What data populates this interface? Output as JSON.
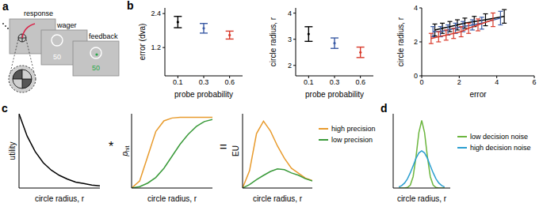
{
  "diagram": {
    "label": "a",
    "screens": [
      "response",
      "wager",
      "feedback"
    ],
    "wager_value": "50",
    "feedback_value": "50"
  },
  "chart_data": [
    {
      "type": "errorbar",
      "annotations": [
        "b"
      ],
      "xlabel": "probe probability",
      "ylabel": "error (dva)",
      "categories": [
        "0.1",
        "0.3",
        "0.6"
      ],
      "values": [
        2.1,
        1.88,
        1.64
      ],
      "error": [
        0.2,
        0.17,
        0.14
      ],
      "colors": [
        "#000000",
        "#3b5ba5",
        "#d93a2b"
      ],
      "ylim": [
        0.2,
        2.6
      ],
      "yticks": [
        1.2,
        2.4
      ]
    },
    {
      "type": "errorbar",
      "xlabel": "probe probability",
      "ylabel": "circle radius, r",
      "categories": [
        "0.1",
        "0.3",
        "0.6"
      ],
      "values": [
        3.2,
        2.85,
        2.5
      ],
      "error": [
        0.28,
        0.2,
        0.2
      ],
      "colors": [
        "#000000",
        "#3b5ba5",
        "#d93a2b"
      ],
      "ylim": [
        1.6,
        4.2
      ],
      "yticks": [
        2,
        3,
        4
      ]
    },
    {
      "type": "line",
      "xlabel": "error",
      "ylabel": "circle radius, r",
      "xlim": [
        0,
        6
      ],
      "xticks": [
        0,
        2,
        4,
        6
      ],
      "ylim": [
        0,
        4
      ],
      "yticks": [
        0,
        2,
        4
      ],
      "series": [
        {
          "color": "#000000",
          "x": [
            0.7,
            1.1,
            1.5,
            1.9,
            2.3,
            2.8,
            3.4,
            4.4
          ],
          "values": [
            2.7,
            2.8,
            2.9,
            3.0,
            3.1,
            3.2,
            3.3,
            3.5
          ],
          "error": [
            0.35,
            0.3,
            0.3,
            0.3,
            0.3,
            0.3,
            0.35,
            0.4
          ]
        },
        {
          "color": "#3b5ba5",
          "x": [
            0.6,
            1.0,
            1.4,
            1.8,
            2.2,
            2.7,
            3.2,
            4.2
          ],
          "values": [
            2.6,
            2.6,
            2.7,
            2.8,
            2.9,
            3.0,
            3.1,
            3.4
          ],
          "error": [
            0.3,
            0.3,
            0.3,
            0.3,
            0.3,
            0.3,
            0.35,
            0.4
          ]
        },
        {
          "color": "#d93a2b",
          "x": [
            0.5,
            0.9,
            1.3,
            1.7,
            2.1,
            2.5,
            3.0,
            3.8
          ],
          "values": [
            2.2,
            2.3,
            2.4,
            2.5,
            2.6,
            2.8,
            3.0,
            3.3
          ],
          "error": [
            0.3,
            0.3,
            0.3,
            0.3,
            0.3,
            0.3,
            0.35,
            0.4
          ]
        }
      ]
    },
    {
      "type": "line",
      "annotations": [
        "c"
      ],
      "xlabel": "circle radius, r",
      "ylabel": "utility",
      "tick_labels": false,
      "xlim": [
        0,
        10
      ],
      "ylim": [
        0,
        1
      ],
      "series": [
        {
          "color": "#000000",
          "x": [
            0,
            1,
            2,
            3,
            4,
            5,
            6,
            7,
            8,
            9,
            10
          ],
          "values": [
            1,
            0.7,
            0.49,
            0.34,
            0.24,
            0.17,
            0.12,
            0.08,
            0.06,
            0.04,
            0.03
          ]
        }
      ]
    },
    {
      "type": "line",
      "annotations": [
        "*"
      ],
      "xlabel": "circle radius, r",
      "ylabel": [
        "p",
        "hit"
      ],
      "tick_labels": false,
      "xlim": [
        0,
        10
      ],
      "ylim": [
        0,
        1.05
      ],
      "series": [
        {
          "color": "#e89b2d",
          "x": [
            0,
            1,
            2,
            3,
            4,
            5,
            6,
            7,
            8,
            9,
            10
          ],
          "values": [
            0,
            0.1,
            0.45,
            0.8,
            0.95,
            0.99,
            1,
            1,
            1,
            1,
            1
          ]
        },
        {
          "color": "#3a9a3a",
          "x": [
            0,
            1,
            2,
            3,
            4,
            5,
            6,
            7,
            8,
            9,
            10
          ],
          "values": [
            0,
            0.02,
            0.07,
            0.15,
            0.28,
            0.45,
            0.62,
            0.76,
            0.87,
            0.94,
            0.97
          ]
        }
      ]
    },
    {
      "type": "line",
      "annotations": [
        "="
      ],
      "xlabel": "circle radius, r",
      "ylabel": "EU",
      "tick_labels": false,
      "legend": "right",
      "xlim": [
        0,
        10
      ],
      "ylim": [
        0,
        0.3
      ],
      "series": [
        {
          "name": "high precision",
          "color": "#e89b2d",
          "x": [
            0,
            1,
            2,
            3,
            4,
            5,
            6,
            7,
            8,
            9,
            10
          ],
          "values": [
            0,
            0.07,
            0.22,
            0.27,
            0.23,
            0.17,
            0.12,
            0.08,
            0.06,
            0.04,
            0.03
          ]
        },
        {
          "name": "low precision",
          "color": "#3a9a3a",
          "x": [
            0,
            1,
            2,
            3,
            4,
            5,
            6,
            7,
            8,
            9,
            10
          ],
          "values": [
            0,
            0.014,
            0.034,
            0.051,
            0.067,
            0.077,
            0.074,
            0.061,
            0.052,
            0.038,
            0.029
          ]
        }
      ]
    },
    {
      "type": "line",
      "annotations": [
        "d"
      ],
      "xlabel": "circle radius, r",
      "tick_labels": false,
      "legend": "upper right",
      "xlim": [
        0,
        10
      ],
      "ylim": [
        0,
        1.1
      ],
      "series": [
        {
          "name": "low decision noise",
          "color": "#6cb63f",
          "x": [
            1,
            1.5,
            2,
            2.5,
            3,
            3.5,
            4,
            4.5,
            5,
            5.5,
            6,
            6.5,
            7,
            7.5,
            8,
            8.5,
            9
          ],
          "values": [
            0,
            0,
            0.001,
            0.008,
            0.044,
            0.17,
            0.46,
            0.82,
            1,
            0.82,
            0.46,
            0.17,
            0.044,
            0.008,
            0.001,
            0,
            0
          ]
        },
        {
          "name": "high decision noise",
          "color": "#2b9fd0",
          "x": [
            1,
            1.5,
            2,
            2.5,
            3,
            3.5,
            4,
            4.5,
            5,
            5.5,
            6,
            6.5,
            7,
            7.5,
            8,
            8.5,
            9
          ],
          "values": [
            0.016,
            0.036,
            0.074,
            0.137,
            0.226,
            0.33,
            0.44,
            0.52,
            0.55,
            0.52,
            0.44,
            0.33,
            0.226,
            0.137,
            0.074,
            0.036,
            0.016
          ]
        }
      ]
    }
  ]
}
